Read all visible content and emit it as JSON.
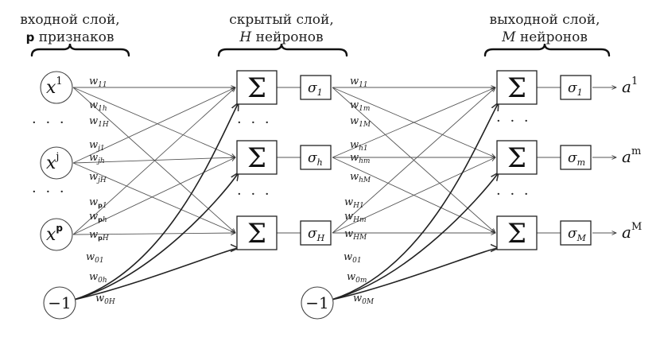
{
  "headers": {
    "input": {
      "line1": "входной слой,",
      "count_symbol": "p",
      "count_word": " признаков"
    },
    "hidden": {
      "line1": "скрытый слой,",
      "count_symbol": "H",
      "count_word": " нейронов"
    },
    "output": {
      "line1": "выходной слой,",
      "count_symbol": "M",
      "count_word": " нейронов"
    }
  },
  "input_nodes": [
    {
      "base": "x",
      "sup": "1",
      "sup_bold": false
    },
    {
      "base": "x",
      "sup": "j",
      "sup_bold": false
    },
    {
      "base": "x",
      "sup": "p",
      "sup_bold": true
    }
  ],
  "bias_nodes": {
    "label": "−1"
  },
  "sum_symbol": "Σ",
  "ellipsis": "· · ·",
  "hidden_activations": [
    {
      "base": "σ",
      "sub": "1"
    },
    {
      "base": "σ",
      "sub": "h"
    },
    {
      "base": "σ",
      "sub": "H"
    }
  ],
  "output_activations": [
    {
      "base": "σ",
      "sub": "1"
    },
    {
      "base": "σ",
      "sub": "m"
    },
    {
      "base": "σ",
      "sub": "M"
    }
  ],
  "outputs": [
    {
      "base": "a",
      "sup": "1"
    },
    {
      "base": "a",
      "sup": "m"
    },
    {
      "base": "a",
      "sup": "M"
    }
  ],
  "input_weights": [
    [
      {
        "base": "w",
        "sub": "11"
      },
      {
        "base": "w",
        "sub": "1h"
      },
      {
        "base": "w",
        "sub": "1H"
      }
    ],
    [
      {
        "base": "w",
        "sub": "j1"
      },
      {
        "base": "w",
        "sub": "jh"
      },
      {
        "base": "w",
        "sub": "jH"
      }
    ],
    [
      {
        "base": "w",
        "sub_bold": "p",
        "sub": "1"
      },
      {
        "base": "w",
        "sub_bold": "p",
        "sub": "h"
      },
      {
        "base": "w",
        "sub_bold": "p",
        "sub": "H"
      }
    ]
  ],
  "input_bias_weights": [
    {
      "base": "w",
      "sub": "01"
    },
    {
      "base": "w",
      "sub": "0h"
    },
    {
      "base": "w",
      "sub": "0H"
    }
  ],
  "hidden_weights": [
    [
      {
        "base": "w",
        "sub": "11"
      },
      {
        "base": "w",
        "sub": "1m"
      },
      {
        "base": "w",
        "sub": "1M"
      }
    ],
    [
      {
        "base": "w",
        "sub": "h1"
      },
      {
        "base": "w",
        "sub": "hm"
      },
      {
        "base": "w",
        "sub": "hM"
      }
    ],
    [
      {
        "base": "w",
        "sub": "H1"
      },
      {
        "base": "w",
        "sub": "Hm"
      },
      {
        "base": "w",
        "sub": "HM"
      }
    ]
  ],
  "hidden_bias_weights": [
    {
      "base": "w",
      "sub": "01"
    },
    {
      "base": "w",
      "sub": "0m"
    },
    {
      "base": "w",
      "sub": "0M"
    }
  ]
}
